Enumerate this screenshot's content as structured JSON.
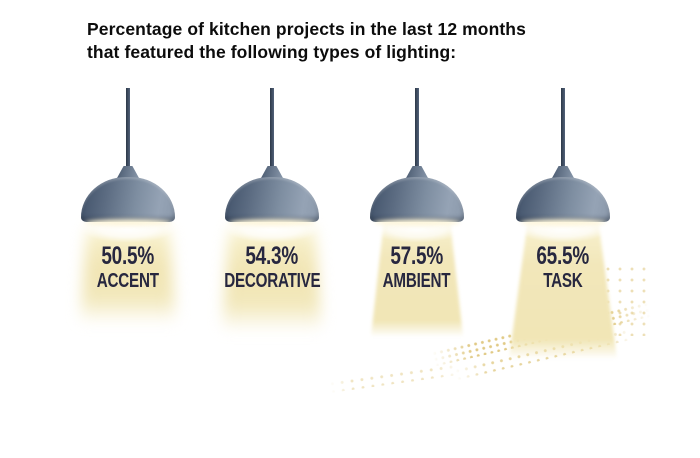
{
  "title": {
    "line1": "Percentage of kitchen projects in the last 12 months",
    "line2": "that featured the following types of lighting:"
  },
  "lamps": [
    {
      "value": "50.5%",
      "label": "ACCENT"
    },
    {
      "value": "54.3%",
      "label": "DECORATIVE"
    },
    {
      "value": "57.5%",
      "label": "AMBIENT"
    },
    {
      "value": "65.5%",
      "label": "TASK"
    }
  ],
  "chart_data": {
    "type": "bar",
    "variant": "pictogram-pendant-lamps",
    "title": "Percentage of kitchen projects in the last 12 months that featured the following types of lighting",
    "categories": [
      "ACCENT",
      "DECORATIVE",
      "AMBIENT",
      "TASK"
    ],
    "values": [
      50.5,
      54.3,
      57.5,
      65.5
    ],
    "unit": "%",
    "xlabel": "",
    "ylabel": "",
    "ylim": [
      0,
      100
    ],
    "grid": false,
    "legend": "none",
    "annotations": "each value is printed inside the light beam of a pendant lamp; beam size/definition grows with the value"
  },
  "colors": {
    "background": "#ffffff",
    "title_text": "#0c0c0c",
    "value_text": "#27273f",
    "lamp_shade": "#7e8ea1",
    "lamp_cord": "#3b4859",
    "beam_yellow": "#f2e7ba",
    "sparkle_dots": "#dfc77f"
  }
}
